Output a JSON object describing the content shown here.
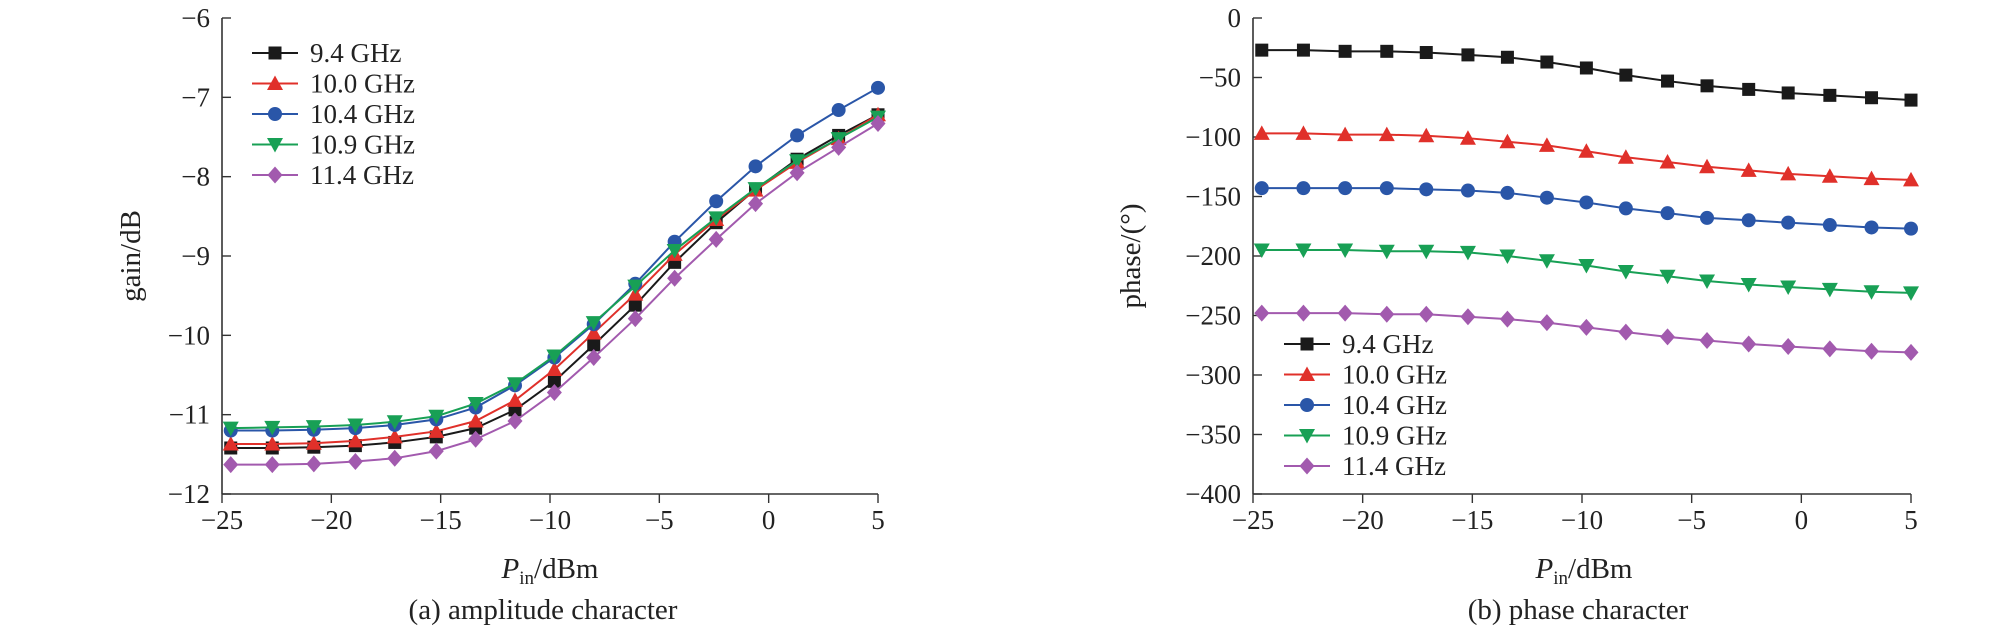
{
  "figure": {
    "captions": [
      "(a) amplitude character",
      "(b) phase character"
    ]
  },
  "series_styles": [
    {
      "name": "9.4 GHz",
      "color": "#1a1a1a",
      "marker": "square"
    },
    {
      "name": "10.0 GHz",
      "color": "#e0302a",
      "marker": "triangle-up"
    },
    {
      "name": "10.4 GHz",
      "color": "#2a56a8",
      "marker": "circle"
    },
    {
      "name": "10.9 GHz",
      "color": "#18a055",
      "marker": "triangle-down"
    },
    {
      "name": "11.4 GHz",
      "color": "#a25aae",
      "marker": "diamond"
    }
  ],
  "chart_data": [
    {
      "type": "line",
      "caption": "(a) amplitude character",
      "xlabel_main": "P",
      "xlabel_sub": "in",
      "xlabel_rest": "/dBm",
      "ylabel": "gain/dB",
      "xlim": [
        -25,
        5
      ],
      "ylim": [
        -12,
        -6
      ],
      "xticks": [
        -25,
        -20,
        -15,
        -10,
        -5,
        0,
        5
      ],
      "yticks": [
        -12,
        -11,
        -10,
        -9,
        -8,
        -7,
        -6
      ],
      "xtick_labels": [
        "−25",
        "−20",
        "−15",
        "−10",
        "−5",
        "0",
        "5"
      ],
      "ytick_labels": [
        "−12",
        "−11",
        "−10",
        "−9",
        "−8",
        "−7",
        "−6"
      ],
      "legend_position": "top-left",
      "x": [
        -24.6,
        -22.7,
        -20.8,
        -18.9,
        -17.1,
        -15.2,
        -13.4,
        -11.6,
        -9.8,
        -8.0,
        -6.1,
        -4.3,
        -2.4,
        -0.6,
        1.3,
        3.2,
        5.0
      ],
      "series": [
        {
          "name": "9.4 GHz",
          "values": [
            -11.42,
            -11.42,
            -11.41,
            -11.39,
            -11.35,
            -11.28,
            -11.17,
            -10.94,
            -10.58,
            -10.12,
            -9.62,
            -9.08,
            -8.58,
            -8.16,
            -7.78,
            -7.48,
            -7.22
          ]
        },
        {
          "name": "10.0 GHz",
          "values": [
            -11.37,
            -11.37,
            -11.36,
            -11.33,
            -11.28,
            -11.21,
            -11.08,
            -10.82,
            -10.43,
            -9.97,
            -9.48,
            -8.98,
            -8.54,
            -8.17,
            -7.82,
            -7.52,
            -7.22
          ]
        },
        {
          "name": "10.4 GHz",
          "values": [
            -11.2,
            -11.2,
            -11.19,
            -11.17,
            -11.13,
            -11.06,
            -10.91,
            -10.63,
            -10.28,
            -9.86,
            -9.35,
            -8.82,
            -8.31,
            -7.87,
            -7.48,
            -7.16,
            -6.88
          ]
        },
        {
          "name": "10.9 GHz",
          "values": [
            -11.17,
            -11.16,
            -11.15,
            -11.13,
            -11.09,
            -11.02,
            -10.86,
            -10.61,
            -10.26,
            -9.84,
            -9.38,
            -8.93,
            -8.52,
            -8.15,
            -7.8,
            -7.52,
            -7.25
          ]
        },
        {
          "name": "11.4 GHz",
          "values": [
            -11.63,
            -11.63,
            -11.62,
            -11.59,
            -11.55,
            -11.46,
            -11.31,
            -11.08,
            -10.72,
            -10.28,
            -9.79,
            -9.28,
            -8.79,
            -8.34,
            -7.95,
            -7.63,
            -7.33
          ]
        }
      ]
    },
    {
      "type": "line",
      "caption": "(b) phase character",
      "xlabel_main": "P",
      "xlabel_sub": "in",
      "xlabel_rest": "/dBm",
      "ylabel": "phase/(°)",
      "xlim": [
        -25,
        5
      ],
      "ylim": [
        -400,
        0
      ],
      "xticks": [
        -25,
        -20,
        -15,
        -10,
        -5,
        0,
        5
      ],
      "yticks": [
        -400,
        -350,
        -300,
        -250,
        -200,
        -150,
        -100,
        -50,
        0
      ],
      "xtick_labels": [
        "−25",
        "−20",
        "−15",
        "−10",
        "−5",
        "0",
        "5"
      ],
      "ytick_labels": [
        "−400",
        "−350",
        "−300",
        "−250",
        "−200",
        "−150",
        "−100",
        "−50",
        "0"
      ],
      "legend_position": "bottom-left",
      "x": [
        -24.6,
        -22.7,
        -20.8,
        -18.9,
        -17.1,
        -15.2,
        -13.4,
        -11.6,
        -9.8,
        -8.0,
        -6.1,
        -4.3,
        -2.4,
        -0.6,
        1.3,
        3.2,
        5.0
      ],
      "series": [
        {
          "name": "9.4 GHz",
          "values": [
            -27,
            -27,
            -28,
            -28,
            -29,
            -31,
            -33,
            -37,
            -42,
            -48,
            -53,
            -57,
            -60,
            -63,
            -65,
            -67,
            -69
          ]
        },
        {
          "name": "10.0 GHz",
          "values": [
            -97,
            -97,
            -98,
            -98,
            -99,
            -101,
            -104,
            -107,
            -112,
            -117,
            -121,
            -125,
            -128,
            -131,
            -133,
            -135,
            -136
          ]
        },
        {
          "name": "10.4 GHz",
          "values": [
            -143,
            -143,
            -143,
            -143,
            -144,
            -145,
            -147,
            -151,
            -155,
            -160,
            -164,
            -168,
            -170,
            -172,
            -174,
            -176,
            -177
          ]
        },
        {
          "name": "10.9 GHz",
          "values": [
            -195,
            -195,
            -195,
            -196,
            -196,
            -197,
            -200,
            -204,
            -208,
            -213,
            -217,
            -221,
            -224,
            -226,
            -228,
            -230,
            -231
          ]
        },
        {
          "name": "11.4 GHz",
          "values": [
            -248,
            -248,
            -248,
            -249,
            -249,
            -251,
            -253,
            -256,
            -260,
            -264,
            -268,
            -271,
            -274,
            -276,
            -278,
            -280,
            -281
          ]
        }
      ]
    }
  ]
}
